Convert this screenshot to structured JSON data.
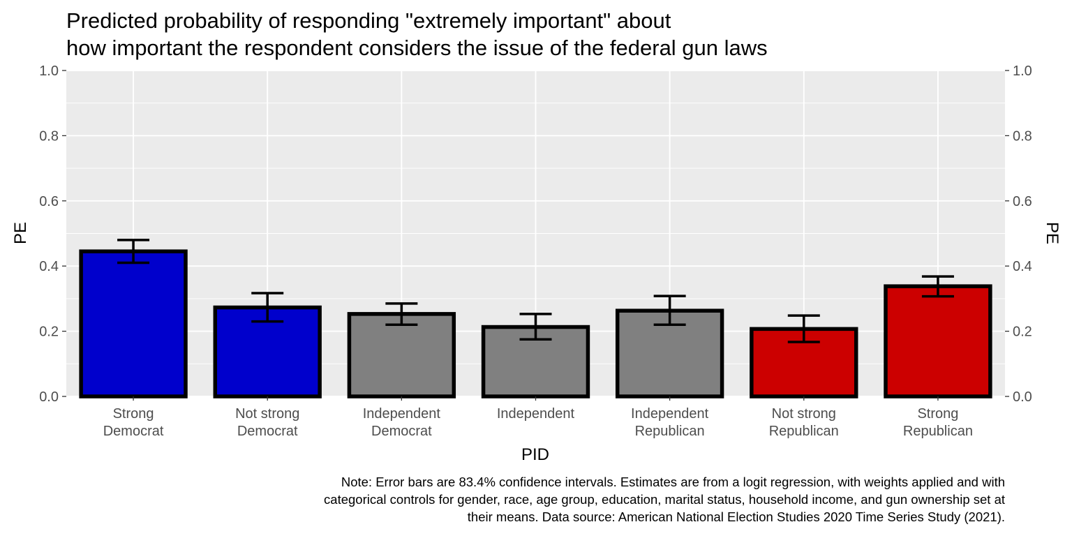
{
  "chart_data": {
    "type": "bar",
    "title": [
      "Predicted probability of responding \"extremely important\" about",
      "how important the respondent considers the issue of the federal gun laws"
    ],
    "xlabel": "PID",
    "ylabel": "PE",
    "ylabel_right": "PE",
    "ylim": [
      0,
      1
    ],
    "yticks": [
      "0.0",
      "0.2",
      "0.4",
      "0.6",
      "0.8",
      "1.0"
    ],
    "grid": true,
    "categories": [
      [
        "Strong",
        "Democrat"
      ],
      [
        "Not strong",
        "Democrat"
      ],
      [
        "Independent",
        "Democrat"
      ],
      [
        "Independent"
      ],
      [
        "Independent",
        "Republican"
      ],
      [
        "Not strong",
        "Republican"
      ],
      [
        "Strong",
        "Republican"
      ]
    ],
    "values": [
      0.445,
      0.273,
      0.253,
      0.213,
      0.263,
      0.207,
      0.338
    ],
    "ci_lower": [
      0.41,
      0.23,
      0.22,
      0.175,
      0.22,
      0.167,
      0.307
    ],
    "ci_upper": [
      0.48,
      0.317,
      0.285,
      0.253,
      0.308,
      0.248,
      0.368
    ],
    "fill_colors": [
      "#0000CC",
      "#0000CC",
      "#808080",
      "#808080",
      "#808080",
      "#CC0000",
      "#CC0000"
    ],
    "note": [
      "Note: Error bars are 83.4% confidence intervals. Estimates are from a logit regression, with weights applied and with",
      "categorical controls for gender, race, age group, education, marital status, household income, and gun ownership set at",
      "their means. Data source: American National Election Studies 2020 Time Series Study (2021)."
    ]
  }
}
